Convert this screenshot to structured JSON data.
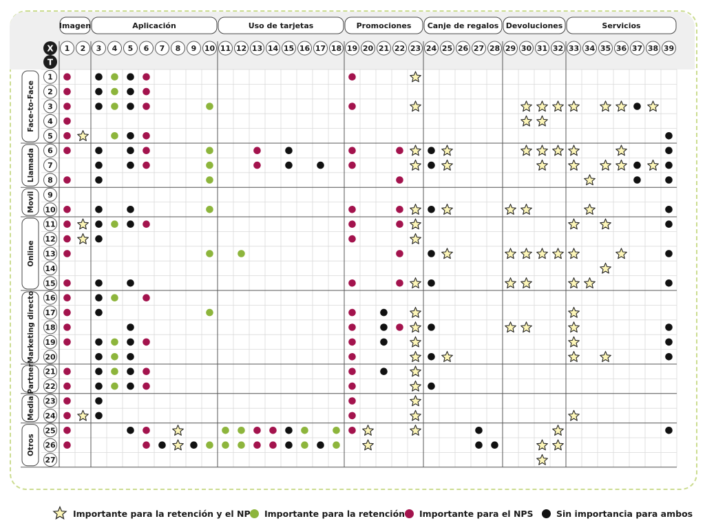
{
  "categories": [
    {
      "label": "Imagen",
      "from": 1,
      "to": 2
    },
    {
      "label": "Aplicación",
      "from": 3,
      "to": 10
    },
    {
      "label": "Uso de tarjetas",
      "from": 11,
      "to": 18
    },
    {
      "label": "Promociones",
      "from": 19,
      "to": 23
    },
    {
      "label": "Canje de regalos",
      "from": 24,
      "to": 28
    },
    {
      "label": "Devoluciones",
      "from": 29,
      "to": 32
    },
    {
      "label": "Servicios",
      "from": 33,
      "to": 39
    }
  ],
  "axis_labels": {
    "x": "X",
    "t": "T"
  },
  "column_count": 39,
  "row_count": 27,
  "groups": [
    {
      "label": "Face-to-Face",
      "from": 1,
      "to": 5
    },
    {
      "label": "Llamada",
      "from": 6,
      "to": 8
    },
    {
      "label": "Movil",
      "from": 9,
      "to": 10
    },
    {
      "label": "Online",
      "from": 11,
      "to": 15
    },
    {
      "label": "Marketing directo",
      "from": 16,
      "to": 20
    },
    {
      "label": "Partner",
      "from": 21,
      "to": 22
    },
    {
      "label": "Media",
      "from": 23,
      "to": 24
    },
    {
      "label": "Otros",
      "from": 25,
      "to": 27
    }
  ],
  "cells": {
    "1": {
      "r": [
        1,
        6,
        19
      ],
      "b": [
        3,
        5
      ],
      "g": [
        4
      ],
      "s": [
        23
      ]
    },
    "2": {
      "r": [
        1,
        6
      ],
      "b": [
        3,
        5
      ],
      "g": [
        4
      ],
      "s": []
    },
    "3": {
      "r": [
        1,
        6,
        19
      ],
      "b": [
        3,
        5,
        37
      ],
      "g": [
        4,
        10
      ],
      "s": [
        23,
        30,
        31,
        32,
        33,
        35,
        36,
        38
      ]
    },
    "4": {
      "r": [
        1
      ],
      "b": [],
      "g": [],
      "s": [
        30,
        31
      ]
    },
    "5": {
      "r": [
        1,
        6
      ],
      "b": [
        5,
        39
      ],
      "g": [
        4
      ],
      "s": [
        2
      ]
    },
    "6": {
      "r": [
        1,
        6,
        13,
        19,
        22
      ],
      "b": [
        3,
        5,
        15,
        24,
        39
      ],
      "g": [
        10
      ],
      "s": [
        23,
        25,
        30,
        31,
        32,
        33,
        36
      ]
    },
    "7": {
      "r": [
        6,
        13,
        19
      ],
      "b": [
        3,
        5,
        15,
        17,
        24,
        37,
        39
      ],
      "g": [
        10
      ],
      "s": [
        23,
        25,
        31,
        33,
        35,
        36,
        38
      ]
    },
    "8": {
      "r": [
        1,
        22
      ],
      "b": [
        3,
        37,
        39
      ],
      "g": [
        10
      ],
      "s": [
        34
      ]
    },
    "9": {
      "r": [],
      "b": [],
      "g": [],
      "s": []
    },
    "10": {
      "r": [
        1,
        19,
        22
      ],
      "b": [
        3,
        5,
        24,
        39
      ],
      "g": [
        10
      ],
      "s": [
        23,
        25,
        29,
        30,
        34
      ]
    },
    "11": {
      "r": [
        1,
        6,
        19,
        22
      ],
      "b": [
        3,
        5,
        39
      ],
      "g": [
        4
      ],
      "s": [
        2,
        23,
        33,
        35
      ]
    },
    "12": {
      "r": [
        1,
        19
      ],
      "b": [
        3
      ],
      "g": [],
      "s": [
        2,
        23
      ]
    },
    "13": {
      "r": [
        1,
        22
      ],
      "b": [
        24,
        39
      ],
      "g": [
        10,
        12
      ],
      "s": [
        25,
        29,
        30,
        31,
        32,
        33,
        36
      ]
    },
    "14": {
      "r": [],
      "b": [],
      "g": [],
      "s": [
        35
      ]
    },
    "15": {
      "r": [
        1,
        19,
        22
      ],
      "b": [
        3,
        5,
        24,
        39
      ],
      "g": [],
      "s": [
        23,
        29,
        30,
        33,
        34
      ]
    },
    "16": {
      "r": [
        1,
        6
      ],
      "b": [
        3
      ],
      "g": [
        4
      ],
      "s": []
    },
    "17": {
      "r": [
        1,
        19
      ],
      "b": [
        3,
        21
      ],
      "g": [
        10
      ],
      "s": [
        23,
        33
      ]
    },
    "18": {
      "r": [
        1,
        19,
        22
      ],
      "b": [
        5,
        21,
        24,
        39
      ],
      "g": [],
      "s": [
        23,
        29,
        30,
        33
      ]
    },
    "19": {
      "r": [
        1,
        6,
        19
      ],
      "b": [
        3,
        5,
        21,
        39
      ],
      "g": [
        4
      ],
      "s": [
        23,
        33
      ]
    },
    "20": {
      "r": [
        19
      ],
      "b": [
        3,
        5,
        24,
        39
      ],
      "g": [
        4
      ],
      "s": [
        23,
        25,
        33,
        35
      ]
    },
    "21": {
      "r": [
        1,
        6,
        19
      ],
      "b": [
        3,
        5,
        21
      ],
      "g": [
        4
      ],
      "s": [
        23
      ]
    },
    "22": {
      "r": [
        1,
        6,
        19
      ],
      "b": [
        3,
        5,
        24
      ],
      "g": [
        4
      ],
      "s": [
        23
      ]
    },
    "23": {
      "r": [
        1,
        19
      ],
      "b": [
        3
      ],
      "g": [],
      "s": [
        23
      ]
    },
    "24": {
      "r": [
        1,
        19
      ],
      "b": [
        3
      ],
      "g": [],
      "s": [
        2,
        23,
        33
      ]
    },
    "25": {
      "r": [
        1,
        6,
        13,
        14,
        19
      ],
      "b": [
        5,
        15,
        27,
        39
      ],
      "g": [
        11,
        12,
        16,
        18
      ],
      "s": [
        8,
        20,
        23,
        32
      ]
    },
    "26": {
      "r": [
        1,
        6,
        13,
        14
      ],
      "b": [
        7,
        9,
        15,
        17,
        27,
        28
      ],
      "g": [
        10,
        11,
        12,
        16,
        18
      ],
      "s": [
        8,
        20,
        31,
        32
      ]
    },
    "27": {
      "r": [],
      "b": [],
      "g": [],
      "s": [
        31
      ]
    }
  },
  "legend": {
    "star": "Importante para la retención y el NPS",
    "green": "Importante para la retención",
    "red": "Importante para el NPS",
    "black": "Sin importancia para ambos"
  },
  "colors": {
    "star_fill": "#fdf6b8",
    "green": "#8db53c",
    "red": "#a3134d",
    "black": "#111111",
    "frame": "#cbdc8f",
    "gray": "#efefef",
    "grid": "#d9d9d9",
    "separator": "#555555"
  }
}
